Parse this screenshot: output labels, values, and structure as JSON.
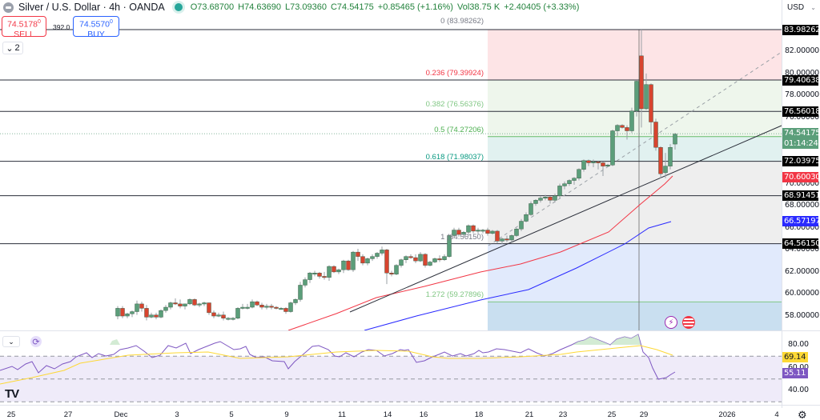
{
  "header": {
    "symbol_title": "Silver / U.S. Dollar · 4h · OANDA",
    "open": "O73.68700",
    "high": "H74.63690",
    "low": "L73.09360",
    "close": "C74.54175",
    "change": "+0.85465 (+1.16%)",
    "volume": "Vol38.75 K",
    "volume_change": "+2.40405 (+3.33%)"
  },
  "trade": {
    "sell_price": "74.5178",
    "sell_sup": "0",
    "sell_label": "SELL",
    "buy_price": "74.5570",
    "buy_sup": "0",
    "buy_label": "BUY",
    "spread": "392.0"
  },
  "collapse_indicators": {
    "label": "2"
  },
  "currency": {
    "selected": "USD"
  },
  "price_axis": {
    "ticks": [
      "82.00000",
      "80.00000",
      "78.00000",
      "76.00000",
      "70.00000",
      "68.00000",
      "66.00000",
      "64.00000",
      "62.00000",
      "60.00000",
      "58.00000"
    ],
    "tick_values": [
      82,
      80,
      78,
      76,
      70,
      68,
      66,
      64,
      62,
      60,
      58
    ],
    "tags": [
      {
        "value": "83.98262",
        "color": "#000000"
      },
      {
        "value": "79.40638",
        "color": "#000000"
      },
      {
        "value": "76.56018",
        "color": "#000000"
      },
      {
        "value": "72.03975",
        "color": "#000000"
      },
      {
        "value": "70.60030",
        "color": "#f23645"
      },
      {
        "value": "68.91451",
        "color": "#000000"
      },
      {
        "value": "66.57197",
        "color": "#2929ff"
      },
      {
        "value": "64.56150",
        "color": "#000000"
      }
    ],
    "current_price": "74.54175",
    "countdown": "01:14:24",
    "current_color": "#5b9e7a"
  },
  "rsi_axis": {
    "ticks": [
      "80.00",
      "60.00",
      "40.00"
    ],
    "rsi_ma_tag": "69.14",
    "rsi_tag": "55.11"
  },
  "time_axis": {
    "labels": [
      "25",
      "27",
      "Dec",
      "3",
      "5",
      "9",
      "11",
      "14",
      "16",
      "18",
      "21",
      "23",
      "25",
      "29",
      "2026",
      "4"
    ]
  },
  "fibonacci": {
    "levels": [
      {
        "label": "0 (83.98262)",
        "ratio": 0,
        "price": 83.98262,
        "color": "#787b86"
      },
      {
        "label": "0.236 (79.39924)",
        "ratio": 0.236,
        "price": 79.39924,
        "color": "#f23645"
      },
      {
        "label": "0.382 (76.56376)",
        "ratio": 0.382,
        "price": 76.56376,
        "color": "#81c784"
      },
      {
        "label": "0.5 (74.27206)",
        "ratio": 0.5,
        "price": 74.27206,
        "color": "#4caf50"
      },
      {
        "label": "0.618 (71.98037)",
        "ratio": 0.618,
        "price": 71.98037,
        "color": "#089981"
      },
      {
        "label": "1 (64.56150)",
        "ratio": 1,
        "price": 64.5615,
        "color": "#787b86"
      },
      {
        "label": "1.272 (59.27896)",
        "ratio": 1.272,
        "price": 59.27896,
        "color": "#81c784"
      }
    ]
  },
  "colors": {
    "up": "#5b9e7a",
    "down": "#d8442f",
    "ema_fast": "#f23645",
    "ema_slow": "#2929ff",
    "rsi": "#7e57c2",
    "rsi_ma": "#fdd835"
  },
  "chart_data": {
    "type": "candlestick",
    "title": "Silver / U.S. Dollar · 4h · OANDA",
    "xlabel": "",
    "ylabel": "USD",
    "ylim": [
      57.0,
      85.0
    ],
    "x_ticks": [
      "25",
      "27",
      "Dec",
      "3",
      "5",
      "9",
      "11",
      "14",
      "16",
      "18",
      "21",
      "23",
      "25",
      "29",
      "2026",
      "4"
    ],
    "horizontal_levels": [
      83.98262,
      79.40638,
      76.56018,
      72.03975,
      68.91451,
      64.5615
    ],
    "last": {
      "open": 73.687,
      "high": 74.6369,
      "low": 73.0936,
      "close": 74.54175,
      "change": 0.85465,
      "change_pct": 1.16
    },
    "series": [
      {
        "name": "EMA fast (red)",
        "last_value": 70.6003
      },
      {
        "name": "EMA slow (blue)",
        "last_value": 66.57197
      },
      {
        "name": "RSI",
        "last_value": 55.11
      },
      {
        "name": "RSI MA",
        "last_value": 69.14
      }
    ],
    "candles_approx": [
      [
        147,
        58.0,
        58.9,
        57.7,
        58.7
      ],
      [
        153,
        58.7,
        58.9,
        57.8,
        58.0
      ],
      [
        159,
        58.0,
        58.3,
        57.8,
        58.2
      ],
      [
        165,
        58.2,
        58.5,
        57.9,
        58.4
      ],
      [
        171,
        58.4,
        59.4,
        58.1,
        59.1
      ],
      [
        177,
        59.1,
        59.3,
        58.4,
        58.7
      ],
      [
        183,
        58.7,
        59.0,
        57.6,
        57.9
      ],
      [
        189,
        57.9,
        58.3,
        57.8,
        58.1
      ],
      [
        195,
        58.1,
        58.3,
        57.7,
        57.9
      ],
      [
        201,
        57.9,
        58.6,
        57.8,
        58.5
      ],
      [
        207,
        58.5,
        59.0,
        58.3,
        58.8
      ],
      [
        213,
        58.8,
        59.3,
        58.6,
        59.2
      ],
      [
        219,
        59.2,
        59.6,
        59.0,
        59.1
      ],
      [
        225,
        59.1,
        59.5,
        58.7,
        58.9
      ],
      [
        231,
        58.9,
        59.1,
        58.6,
        59.1
      ],
      [
        237,
        59.1,
        59.6,
        59.0,
        59.5
      ],
      [
        243,
        59.5,
        59.6,
        58.9,
        59.0
      ],
      [
        249,
        59.0,
        59.2,
        58.8,
        59.1
      ],
      [
        255,
        59.1,
        59.3,
        58.9,
        59.2
      ],
      [
        261,
        59.2,
        59.2,
        58.1,
        58.3
      ],
      [
        267,
        58.3,
        58.5,
        57.8,
        58.0
      ],
      [
        273,
        58.0,
        58.3,
        57.9,
        58.1
      ],
      [
        279,
        58.1,
        58.4,
        57.6,
        57.8
      ],
      [
        285,
        57.8,
        57.9,
        57.6,
        57.8
      ],
      [
        291,
        57.8,
        57.9,
        57.6,
        57.8
      ],
      [
        297,
        57.8,
        58.8,
        57.7,
        58.7
      ],
      [
        303,
        58.7,
        59.1,
        58.6,
        58.8
      ],
      [
        309,
        58.8,
        59.1,
        58.6,
        58.8
      ],
      [
        315,
        58.8,
        59.5,
        58.7,
        59.3
      ],
      [
        321,
        59.3,
        59.4,
        58.9,
        59.0
      ],
      [
        327,
        59.0,
        59.2,
        58.6,
        58.8
      ],
      [
        333,
        58.8,
        59.1,
        58.6,
        58.9
      ],
      [
        339,
        58.9,
        59.1,
        58.6,
        58.8
      ],
      [
        345,
        58.8,
        58.9,
        58.6,
        58.7
      ],
      [
        351,
        58.7,
        58.8,
        58.6,
        58.7
      ],
      [
        357,
        58.7,
        58.8,
        58.2,
        58.4
      ],
      [
        363,
        58.4,
        59.3,
        58.3,
        59.2
      ],
      [
        369,
        59.2,
        59.6,
        59.0,
        59.5
      ],
      [
        375,
        59.5,
        61.1,
        59.3,
        60.8
      ],
      [
        381,
        60.8,
        61.5,
        60.6,
        61.3
      ],
      [
        387,
        61.3,
        62.0,
        61.0,
        61.9
      ],
      [
        393,
        61.9,
        62.1,
        61.6,
        61.9
      ],
      [
        399,
        61.9,
        62.0,
        61.4,
        61.6
      ],
      [
        405,
        61.6,
        62.0,
        61.3,
        61.5
      ],
      [
        411,
        61.5,
        62.6,
        61.2,
        62.5
      ],
      [
        417,
        62.5,
        62.6,
        61.9,
        62.0
      ],
      [
        423,
        62.0,
        62.3,
        61.8,
        62.2
      ],
      [
        429,
        62.2,
        63.1,
        61.9,
        63.0
      ],
      [
        435,
        63.0,
        63.1,
        62.1,
        62.2
      ],
      [
        441,
        62.2,
        63.9,
        62.0,
        63.8
      ],
      [
        447,
        63.8,
        64.1,
        63.0,
        63.4
      ],
      [
        453,
        63.4,
        63.6,
        62.6,
        62.8
      ],
      [
        459,
        62.8,
        63.3,
        62.6,
        63.2
      ],
      [
        465,
        63.2,
        63.6,
        63.0,
        63.4
      ],
      [
        471,
        63.4,
        63.8,
        63.2,
        63.7
      ],
      [
        477,
        63.7,
        64.3,
        63.5,
        64.0
      ],
      [
        483,
        64.0,
        64.1,
        60.9,
        61.9
      ],
      [
        489,
        61.9,
        62.1,
        61.6,
        61.8
      ],
      [
        495,
        61.8,
        62.7,
        61.7,
        62.6
      ],
      [
        501,
        62.6,
        63.2,
        62.4,
        63.1
      ],
      [
        507,
        63.1,
        63.5,
        62.8,
        63.4
      ],
      [
        513,
        63.4,
        63.6,
        63.2,
        63.3
      ],
      [
        519,
        63.3,
        63.6,
        62.8,
        63.0
      ],
      [
        525,
        63.0,
        63.8,
        62.9,
        63.6
      ],
      [
        531,
        63.6,
        63.7,
        62.4,
        62.6
      ],
      [
        537,
        62.6,
        63.0,
        62.5,
        62.9
      ],
      [
        543,
        62.9,
        63.3,
        62.8,
        63.2
      ],
      [
        549,
        63.2,
        63.5,
        62.9,
        63.1
      ],
      [
        555,
        63.1,
        63.6,
        63.0,
        63.4
      ],
      [
        561,
        63.4,
        65.4,
        63.3,
        65.3
      ],
      [
        567,
        65.3,
        66.0,
        65.2,
        65.8
      ],
      [
        573,
        65.8,
        66.0,
        65.2,
        65.4
      ],
      [
        579,
        65.4,
        65.7,
        65.2,
        65.6
      ],
      [
        585,
        65.6,
        66.3,
        65.2,
        66.2
      ],
      [
        591,
        66.2,
        66.3,
        65.5,
        65.7
      ],
      [
        597,
        65.7,
        66.0,
        65.4,
        65.8
      ],
      [
        603,
        65.8,
        65.9,
        65.5,
        65.8
      ],
      [
        609,
        65.8,
        66.0,
        65.3,
        65.5
      ],
      [
        615,
        65.5,
        65.8,
        65.4,
        65.7
      ],
      [
        621,
        65.7,
        65.8,
        64.6,
        64.8
      ],
      [
        627,
        64.8,
        65.1,
        64.5,
        65.0
      ],
      [
        633,
        65.0,
        65.3,
        64.7,
        64.9
      ],
      [
        639,
        64.9,
        65.4,
        64.7,
        65.3
      ],
      [
        645,
        65.3,
        66.0,
        65.2,
        65.9
      ],
      [
        651,
        65.9,
        66.8,
        65.7,
        66.6
      ],
      [
        657,
        66.6,
        67.4,
        66.5,
        67.2
      ],
      [
        663,
        67.2,
        68.4,
        67.1,
        68.2
      ],
      [
        669,
        68.2,
        68.6,
        68.0,
        68.5
      ],
      [
        675,
        68.5,
        68.9,
        68.3,
        68.7
      ],
      [
        681,
        68.7,
        69.0,
        68.5,
        68.8
      ],
      [
        687,
        68.8,
        68.9,
        68.2,
        68.5
      ],
      [
        693,
        68.5,
        69.1,
        68.3,
        68.9
      ],
      [
        699,
        68.9,
        70.0,
        68.7,
        69.8
      ],
      [
        705,
        69.8,
        70.2,
        69.5,
        70.0
      ],
      [
        711,
        70.0,
        70.4,
        69.8,
        70.3
      ],
      [
        717,
        70.3,
        70.6,
        69.9,
        70.5
      ],
      [
        723,
        70.5,
        71.4,
        70.3,
        71.3
      ],
      [
        729,
        71.3,
        72.2,
        71.1,
        72.1
      ],
      [
        735,
        72.1,
        72.2,
        71.6,
        71.9
      ],
      [
        741,
        71.9,
        72.2,
        71.5,
        72.0
      ],
      [
        747,
        72.0,
        72.1,
        71.3,
        71.9
      ],
      [
        753,
        71.9,
        72.0,
        70.7,
        71.6
      ],
      [
        759,
        71.6,
        71.8,
        71.5,
        71.7
      ],
      [
        765,
        71.7,
        74.9,
        71.6,
        74.8
      ],
      [
        771,
        74.8,
        75.4,
        74.3,
        75.3
      ],
      [
        777,
        75.3,
        75.4,
        75.0,
        75.1
      ],
      [
        783,
        75.1,
        75.3,
        74.0,
        74.8
      ],
      [
        789,
        74.8,
        76.9,
        74.6,
        76.6
      ],
      [
        795,
        76.6,
        79.4,
        76.1,
        79.3
      ],
      [
        801,
        81.6,
        84.0,
        75.1,
        76.8
      ],
      [
        807,
        76.8,
        80.0,
        76.7,
        79.0
      ],
      [
        813,
        79.0,
        79.1,
        74.5,
        75.6
      ],
      [
        819,
        75.6,
        75.9,
        73.0,
        73.3
      ],
      [
        825,
        73.3,
        73.4,
        70.5,
        70.9
      ],
      [
        831,
        71.0,
        72.8,
        70.5,
        71.6
      ],
      [
        837,
        71.6,
        73.6,
        71.3,
        73.3
      ],
      [
        843,
        73.6,
        74.6,
        73.1,
        74.5
      ]
    ],
    "rsi": {
      "upper": 70,
      "mid": 50,
      "lower": 30,
      "last": 55.11,
      "ma_last": 69.14
    }
  }
}
